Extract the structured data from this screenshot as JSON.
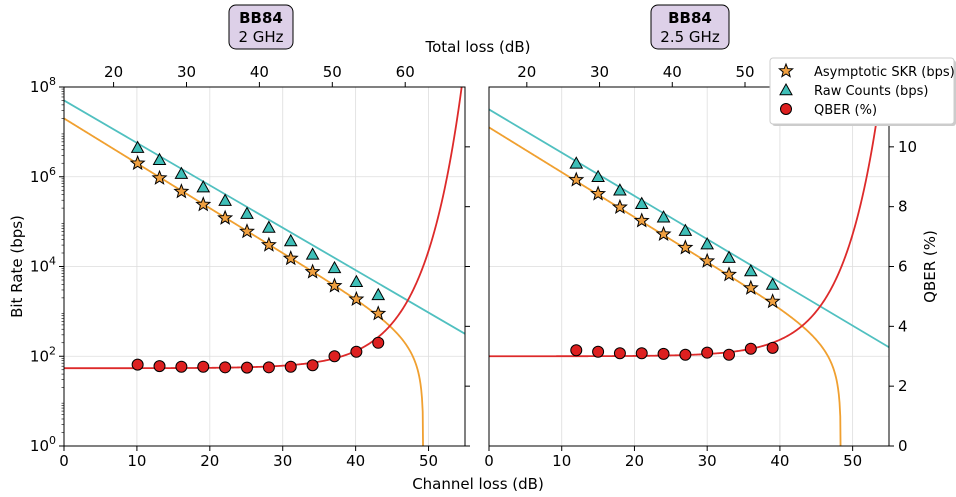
{
  "chart_data": [
    {
      "type": "scatter",
      "annotation": {
        "line1": "BB84",
        "line2": "2 GHz",
        "fill": "#ddd0e8"
      },
      "top_xlabel": "Total loss (dB)",
      "top_xticks": [
        20,
        30,
        40,
        50,
        60
      ],
      "top_xlim": [
        13.2,
        68.2
      ],
      "xlim": [
        0,
        55
      ],
      "xticks": [
        0,
        10,
        20,
        30,
        40,
        50
      ],
      "ylabel": "Bit Rate (bps)",
      "ylim_log10": [
        0,
        8
      ],
      "yticks_log10": [
        0,
        2,
        4,
        6,
        8
      ],
      "qber_lim": [
        0,
        12
      ],
      "qber_ticks": [
        0,
        2,
        4,
        6,
        8,
        10
      ],
      "series": [
        {
          "key": "skr",
          "marker": "star",
          "color": "#f0a040",
          "points": [
            [
              10.1,
              6.3
            ],
            [
              13.1,
              5.97
            ],
            [
              16.1,
              5.67
            ],
            [
              19.1,
              5.38
            ],
            [
              22.1,
              5.08
            ],
            [
              25.1,
              4.78
            ],
            [
              28.1,
              4.48
            ],
            [
              31.1,
              4.18
            ],
            [
              34.1,
              3.88
            ],
            [
              37.1,
              3.57
            ],
            [
              40.1,
              3.27
            ],
            [
              43.1,
              2.95
            ]
          ]
        },
        {
          "key": "raw",
          "marker": "triangle",
          "color": "#3fbfb8",
          "points": [
            [
              10.1,
              6.65
            ],
            [
              13.1,
              6.38
            ],
            [
              16.1,
              6.07
            ],
            [
              19.1,
              5.77
            ],
            [
              22.1,
              5.47
            ],
            [
              25.1,
              5.18
            ],
            [
              28.1,
              4.87
            ],
            [
              31.1,
              4.57
            ],
            [
              34.1,
              4.27
            ],
            [
              37.1,
              3.97
            ],
            [
              40.1,
              3.66
            ],
            [
              43.1,
              3.37
            ]
          ]
        },
        {
          "key": "qber",
          "marker": "circle",
          "color": "#dd2020",
          "axis": "right",
          "points": [
            [
              10.1,
              2.72
            ],
            [
              13.1,
              2.67
            ],
            [
              16.1,
              2.65
            ],
            [
              19.1,
              2.65
            ],
            [
              22.1,
              2.63
            ],
            [
              25.1,
              2.62
            ],
            [
              28.1,
              2.63
            ],
            [
              31.1,
              2.65
            ],
            [
              34.1,
              2.7
            ],
            [
              37.1,
              3.0
            ],
            [
              40.1,
              3.15
            ],
            [
              43.1,
              3.45
            ]
          ]
        }
      ],
      "fits": [
        {
          "key": "raw_fit",
          "color": "#50c0c0",
          "type": "linear",
          "points": [
            [
              0,
              7.7
            ],
            [
              55,
              2.5
            ]
          ]
        },
        {
          "key": "skr_fit",
          "color": "#f0a030",
          "type": "skr",
          "a": 7.3,
          "slope": 0.1,
          "loss_max": 49.3
        },
        {
          "key": "qber_fit",
          "color": "#dd2a2a",
          "type": "qber",
          "base": 2.6,
          "pre": 1.5,
          "loss_ref": 45,
          "e_fold": 5.2,
          "cap": 12.3
        }
      ]
    },
    {
      "type": "scatter",
      "annotation": {
        "line1": "BB84",
        "line2": "2.5 GHz",
        "fill": "#ddd0e8"
      },
      "top_xticks": [
        20,
        30,
        40,
        50
      ],
      "top_xlim": [
        14.8,
        69.8
      ],
      "xlim": [
        0,
        55
      ],
      "xticks": [
        0,
        10,
        20,
        30,
        40,
        50
      ],
      "ylim_log10": [
        0,
        8
      ],
      "ylabel_right": "QBER (%)",
      "qber_lim": [
        0,
        12
      ],
      "qber_ticks": [
        0,
        2,
        4,
        6,
        8,
        10
      ],
      "series": [
        {
          "key": "skr",
          "marker": "star",
          "color": "#f0a040",
          "points": [
            [
              12.0,
              5.93
            ],
            [
              15.0,
              5.62
            ],
            [
              18.0,
              5.32
            ],
            [
              21.0,
              5.02
            ],
            [
              24.0,
              4.72
            ],
            [
              27.0,
              4.42
            ],
            [
              30.0,
              4.12
            ],
            [
              33.0,
              3.82
            ],
            [
              36.0,
              3.52
            ],
            [
              39.0,
              3.22
            ]
          ]
        },
        {
          "key": "raw",
          "marker": "triangle",
          "color": "#3fbfb8",
          "points": [
            [
              12.0,
              6.3
            ],
            [
              15.0,
              6.0
            ],
            [
              18.0,
              5.7
            ],
            [
              21.0,
              5.4
            ],
            [
              24.0,
              5.1
            ],
            [
              27.0,
              4.8
            ],
            [
              30.0,
              4.5
            ],
            [
              33.0,
              4.2
            ],
            [
              36.0,
              3.9
            ],
            [
              39.0,
              3.6
            ]
          ]
        },
        {
          "key": "qber",
          "marker": "circle",
          "color": "#dd2020",
          "axis": "right",
          "points": [
            [
              12.0,
              3.2
            ],
            [
              15.0,
              3.15
            ],
            [
              18.0,
              3.1
            ],
            [
              21.0,
              3.1
            ],
            [
              24.0,
              3.08
            ],
            [
              27.0,
              3.05
            ],
            [
              30.0,
              3.12
            ],
            [
              33.0,
              3.05
            ],
            [
              36.0,
              3.25
            ],
            [
              39.0,
              3.28
            ]
          ]
        }
      ],
      "fits": [
        {
          "key": "raw_fit",
          "color": "#50c0c0",
          "type": "linear",
          "points": [
            [
              0,
              7.5
            ],
            [
              55,
              2.2
            ]
          ]
        },
        {
          "key": "skr_fit",
          "color": "#f0a030",
          "type": "skr",
          "a": 7.1,
          "slope": 0.1,
          "loss_max": 48.4
        },
        {
          "key": "qber_fit",
          "color": "#dd2a2a",
          "type": "qber",
          "base": 3.0,
          "pre": 1.5,
          "loss_ref": 45,
          "e_fold": 5.0,
          "cap": 12.3
        }
      ]
    }
  ],
  "shared": {
    "xlabel": "Channel loss (dB)",
    "legend": [
      {
        "label": "Asymptotic SKR (bps)",
        "marker": "star",
        "color": "#f0a040"
      },
      {
        "label": "Raw Counts (bps)",
        "marker": "triangle",
        "color": "#3fbfb8"
      },
      {
        "label": "QBER (%)",
        "marker": "circle",
        "color": "#dd2020"
      }
    ]
  }
}
